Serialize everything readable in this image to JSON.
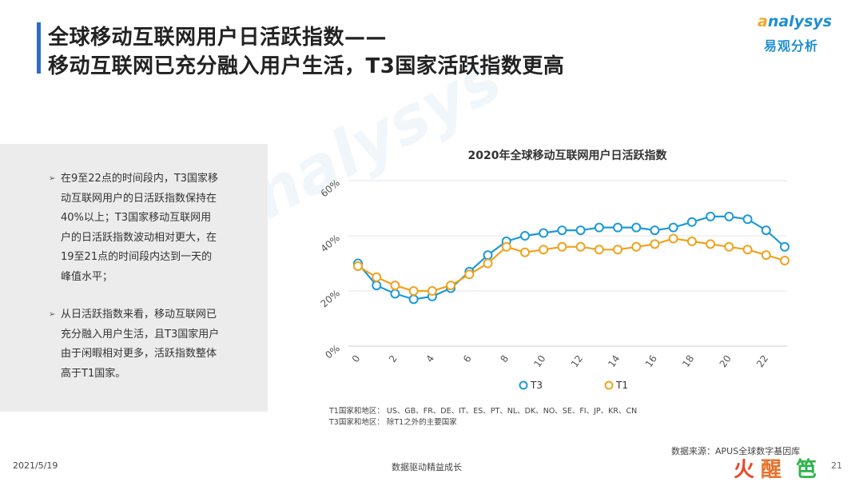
{
  "header": {
    "title_line1": "全球移动互联网用户日活跃指数——",
    "title_line2": "移动互联网已充分融入用户生活，T3国家活跃指数更高"
  },
  "logo": {
    "en": "nalysys",
    "en_prefix": "a",
    "cn": "易观分析"
  },
  "watermark": "nalysys",
  "panel": {
    "bullets": [
      "在9至22点的时间段内，T3国家移动互联网用户的日活跃指数保持在40%以上；T3国家移动互联网用户的日活跃指数波动相对更大，在19至21点的时间段内达到一天的峰值水平；",
      "从日活跃指数来看，移动互联网已充分融入用户生活，且T3国家用户由于闲暇相对更多，活跃指数整体高于T1国家。"
    ]
  },
  "chart_data": {
    "type": "line",
    "title": "2020年全球移动互联网用户日活跃指数",
    "x": [
      0,
      1,
      2,
      3,
      4,
      5,
      6,
      7,
      8,
      9,
      10,
      11,
      12,
      13,
      14,
      15,
      16,
      17,
      18,
      19,
      20,
      21,
      22,
      23
    ],
    "x_ticks": [
      "0",
      "2",
      "4",
      "6",
      "8",
      "10",
      "12",
      "14",
      "16",
      "18",
      "20",
      "22"
    ],
    "y_ticks": [
      "0%",
      "20%",
      "40%",
      "60%"
    ],
    "ylim": [
      0,
      60
    ],
    "grid": true,
    "legend": "bottom",
    "series": [
      {
        "name": "T3",
        "color": "#1e9ad6",
        "values": [
          30,
          22,
          19,
          17,
          18,
          21,
          27,
          33,
          38,
          40,
          41,
          42,
          42,
          43,
          43,
          43,
          42,
          43,
          45,
          47,
          47,
          46,
          42,
          36
        ]
      },
      {
        "name": "T1",
        "color": "#f0a21e",
        "values": [
          29,
          25,
          22,
          20,
          20,
          22,
          26,
          30,
          36,
          34,
          35,
          36,
          36,
          35,
          35,
          36,
          37,
          39,
          38,
          37,
          36,
          35,
          33,
          31
        ]
      }
    ]
  },
  "notes": {
    "t1": "T1国家和地区：  US、GB、FR、DE、IT、ES、PT、NL、DK、NO、SE、FI、JP、KR、CN",
    "t3": "T3国家和地区：  除T1之外的主要国家"
  },
  "source": "数据来源：APUS全球数字基因库",
  "footer": {
    "date": "2021/5/19",
    "center": "数据驱动精益成长",
    "page": "21"
  },
  "stamp": {
    "c1": "火",
    "c2": "醒",
    "c3": "笆",
    "colors": [
      "#e84a2e",
      "#e8732e",
      "#2eb34a"
    ]
  }
}
